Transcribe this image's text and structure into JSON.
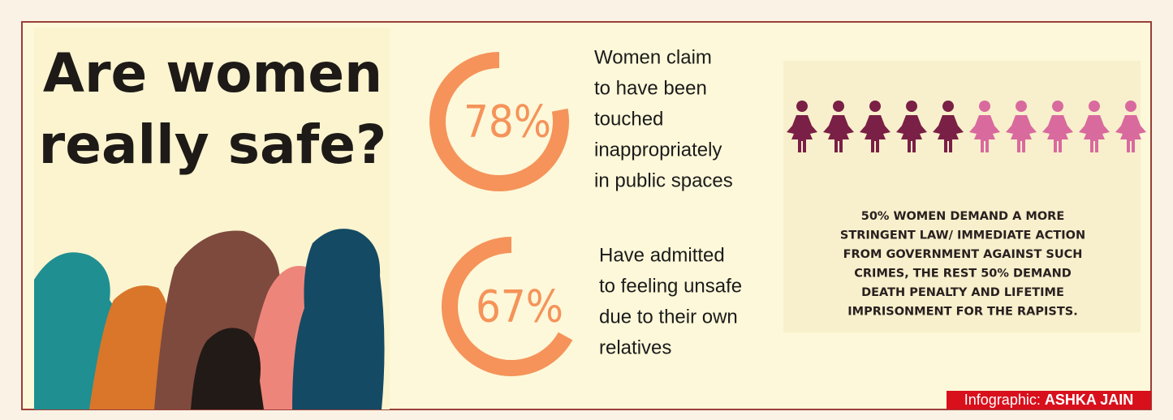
{
  "title": {
    "lines": [
      "Are women",
      "really safe?"
    ]
  },
  "stats": [
    {
      "value": 78,
      "label": "78%",
      "lines": [
        "Women claim",
        "to have been",
        "touched",
        "inappropriately",
        "in public spaces"
      ]
    },
    {
      "value": 67,
      "label": "67%",
      "lines": [
        "Have admitted",
        "to feeling unsafe",
        "due to their own",
        "relatives"
      ]
    }
  ],
  "caption": {
    "lines": [
      "50% WOMEN DEMAND A MORE",
      "STRINGENT LAW/ IMMEDIATE ACTION",
      "FROM GOVERNMENT AGAINST SUCH",
      "CRIMES, THE REST 50% DEMAND",
      "DEATH PENALTY AND LIFETIME",
      "IMPRISONMENT FOR THE RAPISTS."
    ]
  },
  "credit": {
    "prefix": "Infographic:",
    "name": "ASHKA JAIN"
  }
}
